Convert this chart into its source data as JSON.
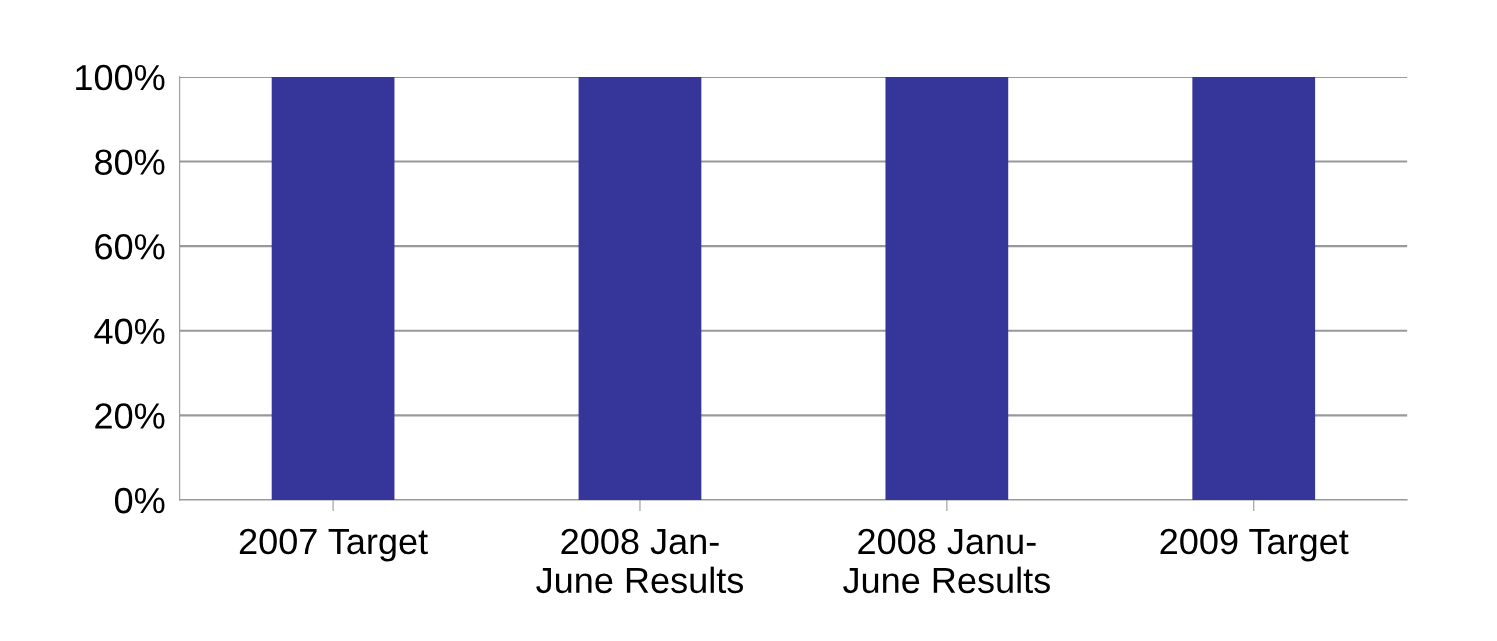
{
  "chart_data": {
    "type": "bar",
    "categories": [
      "2007 Target",
      "2008 Jan-\nJune Results",
      "2008 Janu-\nJune Results",
      "2009 Target"
    ],
    "values": [
      100,
      100,
      100,
      100
    ],
    "color": "#35359a",
    "ylim": [
      0,
      100
    ],
    "yticks": [
      {
        "value": 0,
        "label": "0%"
      },
      {
        "value": 20,
        "label": "20%"
      },
      {
        "value": 40,
        "label": "40%"
      },
      {
        "value": 60,
        "label": "60%"
      },
      {
        "value": 80,
        "label": "80%"
      },
      {
        "value": 100,
        "label": "100%"
      }
    ],
    "grid": "y"
  }
}
